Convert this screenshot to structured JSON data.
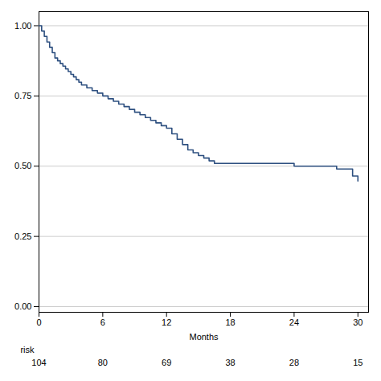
{
  "chart_data": {
    "type": "step",
    "xlabel": "Months",
    "x": [
      0,
      0.25,
      0.5,
      0.75,
      1.0,
      1.25,
      1.5,
      1.75,
      2.0,
      2.25,
      2.5,
      2.75,
      3.0,
      3.25,
      3.5,
      3.75,
      4.0,
      4.5,
      5.0,
      5.5,
      6.0,
      6.5,
      7.0,
      7.5,
      8.0,
      8.5,
      9.0,
      9.5,
      10.0,
      10.5,
      11.0,
      11.5,
      12.0,
      12.5,
      13.0,
      13.5,
      14.0,
      14.5,
      15.0,
      15.5,
      16.0,
      16.5,
      17.0,
      17.5,
      18.0,
      19.0,
      20.0,
      21.0,
      22.0,
      23.0,
      23.5,
      24.0,
      25.0,
      26.0,
      27.0,
      28.0,
      28.5,
      29.5,
      30.0
    ],
    "values": [
      1.0,
      0.981,
      0.962,
      0.942,
      0.923,
      0.904,
      0.885,
      0.875,
      0.865,
      0.856,
      0.846,
      0.837,
      0.827,
      0.818,
      0.808,
      0.799,
      0.789,
      0.779,
      0.769,
      0.76,
      0.75,
      0.74,
      0.731,
      0.721,
      0.712,
      0.702,
      0.692,
      0.683,
      0.673,
      0.663,
      0.654,
      0.644,
      0.635,
      0.615,
      0.596,
      0.577,
      0.558,
      0.548,
      0.538,
      0.529,
      0.519,
      0.51,
      0.51,
      0.51,
      0.51,
      0.51,
      0.51,
      0.51,
      0.51,
      0.51,
      0.51,
      0.5,
      0.5,
      0.5,
      0.5,
      0.49,
      0.49,
      0.465,
      0.447
    ],
    "color": "#2e5080",
    "xlim": [
      0,
      31
    ],
    "ylim": [
      -0.02,
      1.05
    ],
    "xticks": [
      0,
      6,
      12,
      18,
      24,
      30
    ],
    "yticks": [
      {
        "value": 0.0,
        "label": "0.00"
      },
      {
        "value": 0.25,
        "label": "0.25"
      },
      {
        "value": 0.5,
        "label": "0.50"
      },
      {
        "value": 0.75,
        "label": "0.75"
      },
      {
        "value": 1.0,
        "label": "1.00"
      }
    ],
    "grid": "y",
    "at_risk_label": "risk",
    "at_risk_x": [
      0,
      6,
      12,
      18,
      24,
      30
    ],
    "at_risk_values": [
      104,
      80,
      69,
      38,
      28,
      15
    ]
  }
}
